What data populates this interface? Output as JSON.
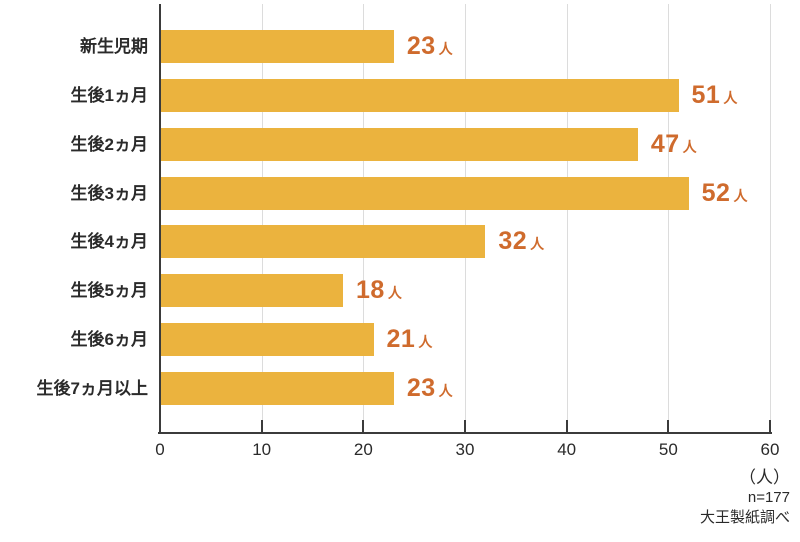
{
  "chart_data": {
    "type": "bar",
    "orientation": "horizontal",
    "title": "",
    "categories": [
      "新生児期",
      "生後1ヵ月",
      "生後2ヵ月",
      "生後3ヵ月",
      "生後4ヵ月",
      "生後5ヵ月",
      "生後6ヵ月",
      "生後7ヵ月以上"
    ],
    "values": [
      23,
      51,
      47,
      52,
      32,
      18,
      21,
      23
    ],
    "value_suffix": "人",
    "xlabel": "",
    "ylabel": "",
    "xlim": [
      0,
      60
    ],
    "xticks": [
      0,
      10,
      20,
      30,
      40,
      50,
      60
    ],
    "x_unit_label": "（人）",
    "grid": true,
    "legend": false,
    "colors": {
      "bar": "#EBB33E",
      "value_text": "#CF6B2D",
      "axis_line": "#3B3B3B",
      "gridline": "#DCDCDC",
      "label_text": "#2A2A2A"
    }
  },
  "footer": {
    "sample_size": "n=177",
    "source": "大王製紙調べ"
  }
}
